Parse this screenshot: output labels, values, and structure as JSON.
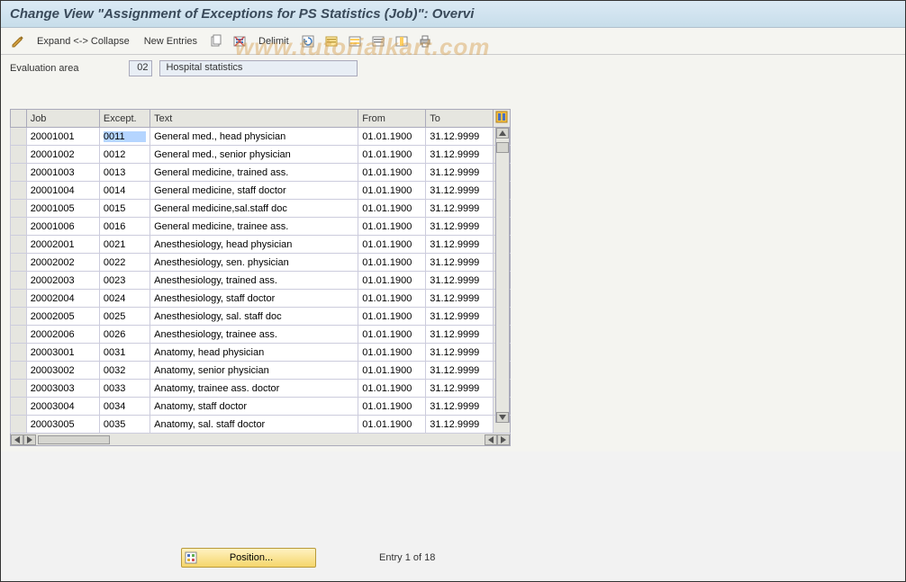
{
  "title": "Change View \"Assignment of Exceptions for PS Statistics (Job)\": Overvi",
  "watermark": "www.tutorialkart.com",
  "toolbar": {
    "expand_collapse": "Expand <-> Collapse",
    "new_entries": "New Entries",
    "delimit": "Delimit"
  },
  "filter": {
    "label": "Evaluation area",
    "code": "02",
    "text": "Hospital statistics"
  },
  "grid": {
    "columns": {
      "job": "Job",
      "except": "Except.",
      "text": "Text",
      "from": "From",
      "to": "To"
    },
    "selected_cell": {
      "row": 0,
      "col": "except"
    },
    "rows": [
      {
        "job": "20001001",
        "except": "0011",
        "text": "General med., head physician",
        "from": "01.01.1900",
        "to": "31.12.9999"
      },
      {
        "job": "20001002",
        "except": "0012",
        "text": "General med., senior physician",
        "from": "01.01.1900",
        "to": "31.12.9999"
      },
      {
        "job": "20001003",
        "except": "0013",
        "text": "General medicine, trained ass.",
        "from": "01.01.1900",
        "to": "31.12.9999"
      },
      {
        "job": "20001004",
        "except": "0014",
        "text": "General medicine, staff doctor",
        "from": "01.01.1900",
        "to": "31.12.9999"
      },
      {
        "job": "20001005",
        "except": "0015",
        "text": "General medicine,sal.staff doc",
        "from": "01.01.1900",
        "to": "31.12.9999"
      },
      {
        "job": "20001006",
        "except": "0016",
        "text": "General medicine, trainee ass.",
        "from": "01.01.1900",
        "to": "31.12.9999"
      },
      {
        "job": "20002001",
        "except": "0021",
        "text": "Anesthesiology, head physician",
        "from": "01.01.1900",
        "to": "31.12.9999"
      },
      {
        "job": "20002002",
        "except": "0022",
        "text": "Anesthesiology, sen. physician",
        "from": "01.01.1900",
        "to": "31.12.9999"
      },
      {
        "job": "20002003",
        "except": "0023",
        "text": "Anesthesiology, trained ass.",
        "from": "01.01.1900",
        "to": "31.12.9999"
      },
      {
        "job": "20002004",
        "except": "0024",
        "text": "Anesthesiology, staff doctor",
        "from": "01.01.1900",
        "to": "31.12.9999"
      },
      {
        "job": "20002005",
        "except": "0025",
        "text": "Anesthesiology, sal. staff doc",
        "from": "01.01.1900",
        "to": "31.12.9999"
      },
      {
        "job": "20002006",
        "except": "0026",
        "text": "Anesthesiology, trainee ass.",
        "from": "01.01.1900",
        "to": "31.12.9999"
      },
      {
        "job": "20003001",
        "except": "0031",
        "text": "Anatomy, head physician",
        "from": "01.01.1900",
        "to": "31.12.9999"
      },
      {
        "job": "20003002",
        "except": "0032",
        "text": "Anatomy, senior physician",
        "from": "01.01.1900",
        "to": "31.12.9999"
      },
      {
        "job": "20003003",
        "except": "0033",
        "text": "Anatomy, trainee ass. doctor",
        "from": "01.01.1900",
        "to": "31.12.9999"
      },
      {
        "job": "20003004",
        "except": "0034",
        "text": "Anatomy, staff doctor",
        "from": "01.01.1900",
        "to": "31.12.9999"
      },
      {
        "job": "20003005",
        "except": "0035",
        "text": "Anatomy, sal. staff doctor",
        "from": "01.01.1900",
        "to": "31.12.9999"
      }
    ]
  },
  "footer": {
    "position_btn": "Position...",
    "entry_status": "Entry 1 of 18"
  },
  "colors": {
    "title_bg_top": "#dbeaf5",
    "title_bg_bottom": "#c7ddea",
    "toolbar_bg": "#f5f5f1",
    "body_bg": "#f4f4f0",
    "header_bg": "#e6e6e0",
    "border": "#aab",
    "selection_bg": "#b5d5ff",
    "pos_btn_top": "#fff2c2",
    "pos_btn_bottom": "#f5d66b"
  }
}
